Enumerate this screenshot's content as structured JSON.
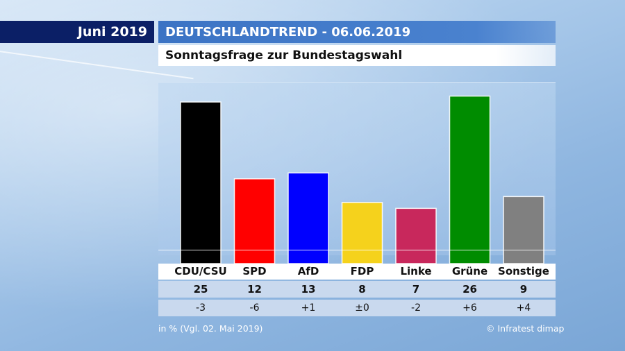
{
  "header": {
    "date_label": "Juni 2019",
    "title": "DEUTSCHLANDTREND - 06.06.2019",
    "subtitle": "Sonntagsfrage zur Bundestagswahl"
  },
  "chart_data": {
    "type": "bar",
    "title": "Sonntagsfrage zur Bundestagswahl",
    "categories": [
      "CDU/CSU",
      "SPD",
      "AfD",
      "FDP",
      "Linke",
      "Grüne",
      "Sonstige"
    ],
    "values": [
      25,
      12,
      13,
      8,
      7,
      26,
      9
    ],
    "value_labels": [
      "25",
      "12",
      "13",
      "8",
      "7",
      "26",
      "9"
    ],
    "changes": [
      "-3",
      "-6",
      "+1",
      "±0",
      "-2",
      "+6",
      "+4"
    ],
    "colors": [
      "#000000",
      "#ff0000",
      "#0000ff",
      "#f5d21c",
      "#c8285c",
      "#008c00",
      "#808080"
    ],
    "ylabel": "in %",
    "ylim": [
      0,
      27
    ]
  },
  "footer": {
    "note": "in % (Vgl. 02. Mai 2019)",
    "source": "© Infratest dimap"
  }
}
